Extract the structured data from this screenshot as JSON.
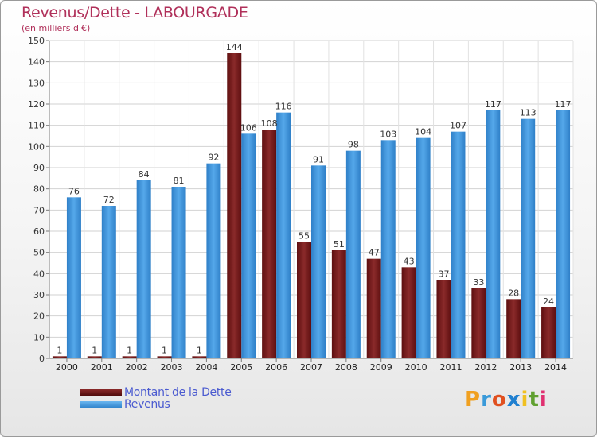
{
  "chart_data": {
    "type": "bar",
    "title": "Revenus/Dette - LABOURGADE",
    "subtitle": "(en milliers d'€)",
    "categories": [
      "2000",
      "2001",
      "2002",
      "2003",
      "2004",
      "2005",
      "2006",
      "2007",
      "2008",
      "2009",
      "2010",
      "2011",
      "2012",
      "2013",
      "2014"
    ],
    "series": [
      {
        "name": "Montant de la Dette",
        "color": "#7a1a1a",
        "values": [
          1,
          1,
          1,
          1,
          1,
          144,
          108,
          55,
          51,
          47,
          43,
          37,
          33,
          28,
          24
        ]
      },
      {
        "name": "Revenus",
        "color": "#3a8fd6",
        "values": [
          76,
          72,
          84,
          81,
          92,
          106,
          116,
          91,
          98,
          103,
          104,
          107,
          117,
          113,
          117
        ]
      }
    ],
    "ylim": [
      0,
      150
    ],
    "yticks": [
      0,
      10,
      20,
      30,
      40,
      50,
      60,
      70,
      80,
      90,
      100,
      110,
      120,
      130,
      140,
      150
    ],
    "grid": true,
    "legend": "bottom-left"
  },
  "brand": {
    "name": "Proxiti",
    "letters": [
      "P",
      "r",
      "o",
      "x",
      "i",
      "t",
      "i"
    ],
    "letter_colors": [
      "#f0a020",
      "#3a9ad9",
      "#e05020",
      "#2080d0",
      "#f0c020",
      "#60a030",
      "#e03070"
    ]
  }
}
